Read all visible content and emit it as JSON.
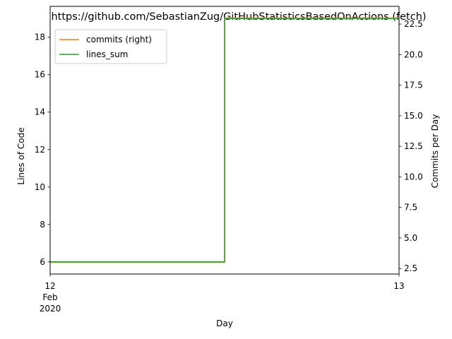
{
  "chart_data": {
    "type": "line",
    "title": "https://github.com/SebastianZug/GitHubStatisticsBasedOnActions (fetch)",
    "xlabel": "Day",
    "ylabel_left": "Lines of Code",
    "ylabel_right": "Commits per Day",
    "x_ticks": [
      {
        "value": "2020-02-12",
        "lines": [
          "12",
          "Feb",
          "2020"
        ]
      },
      {
        "value": "2020-02-13",
        "lines": [
          "13"
        ]
      }
    ],
    "xlim": [
      "2020-02-12",
      "2020-02-13"
    ],
    "ylim_left": [
      5.35,
      19.65
    ],
    "ylim_right": [
      2.05,
      23.95
    ],
    "y_ticks_left": [
      "6",
      "8",
      "10",
      "12",
      "14",
      "16",
      "18"
    ],
    "y_ticks_right": [
      "2.5",
      "5.0",
      "7.5",
      "10.0",
      "12.5",
      "15.0",
      "17.5",
      "20.0",
      "22.5"
    ],
    "series": [
      {
        "name": "commits (right)",
        "axis": "right",
        "color": "#ff7f0e",
        "drawstyle": "steps",
        "x": [
          "2020-02-12",
          "2020-02-12T12:00",
          "2020-02-13"
        ],
        "values": [
          3,
          23,
          23
        ]
      },
      {
        "name": "lines_sum",
        "axis": "left",
        "color": "#2ca02c",
        "drawstyle": "steps",
        "x": [
          "2020-02-12",
          "2020-02-12T12:00",
          "2020-02-13"
        ],
        "values": [
          6,
          19,
          19
        ]
      }
    ],
    "legend": "upper-left",
    "grid": false
  }
}
